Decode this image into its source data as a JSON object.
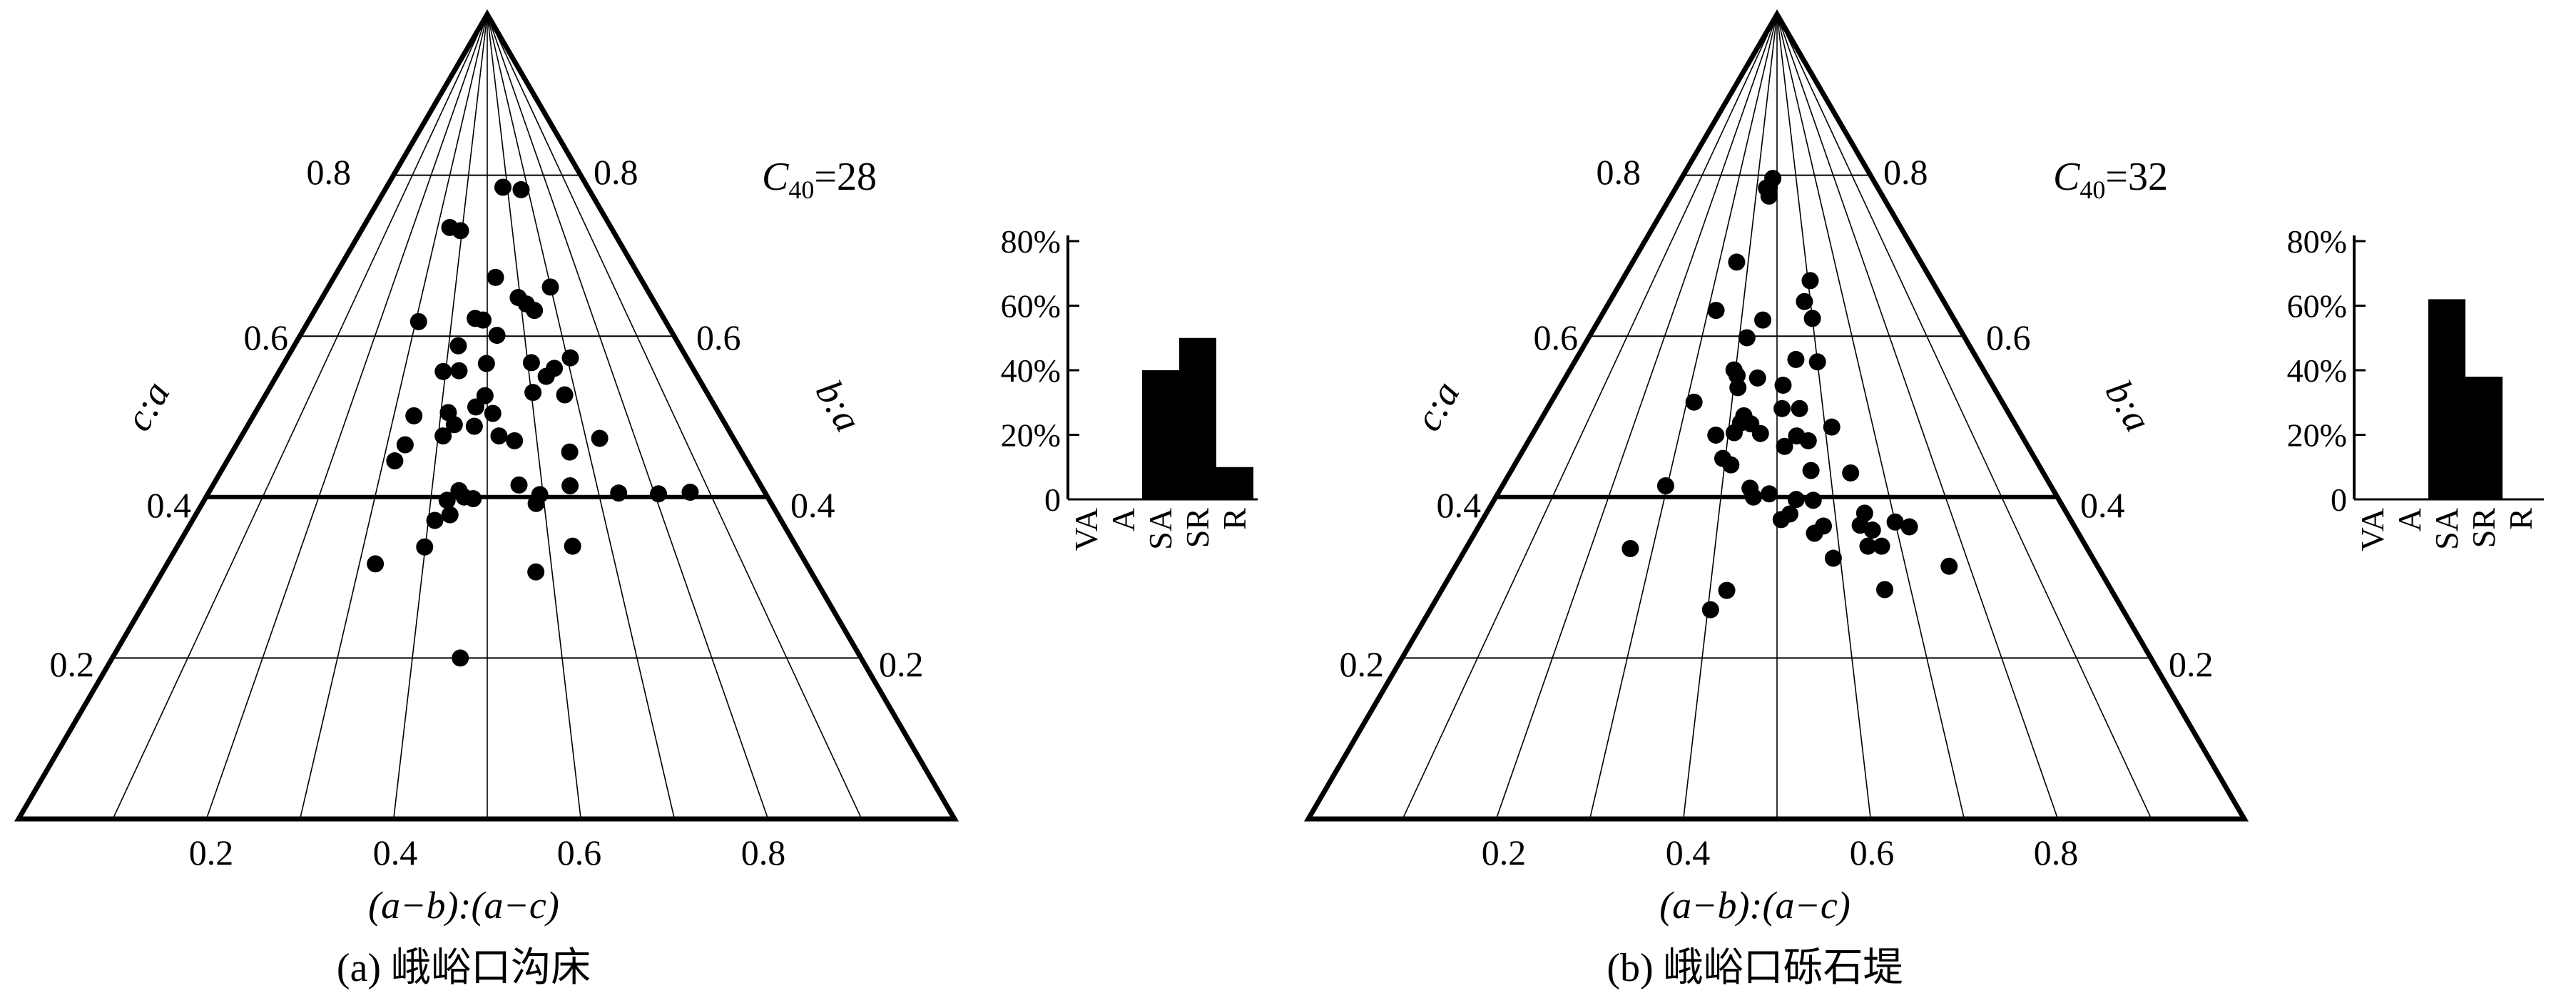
{
  "chart_data": [
    {
      "type": "scatter",
      "subtype": "ternary (Sneed-Folk form diagram)",
      "caption": "(a) 峨峪口沟床",
      "xlabel": "(a−b):(a−c)",
      "left_axis_label": "c:a",
      "right_axis_label": "b:a",
      "annotation": {
        "prefix": "C",
        "subscript": "40",
        "value": "=28"
      },
      "levels": [
        0.2,
        0.4,
        0.6,
        0.8
      ],
      "level_labels": [
        "0.2",
        "0.4",
        "0.6",
        "0.8"
      ],
      "bottom_ticks": [
        "0.2",
        "0.4",
        "0.6",
        "0.8"
      ],
      "grid": true,
      "points": [
        {
          "x": 0.464,
          "y": 0.2
        },
        {
          "x": 0.325,
          "y": 0.317
        },
        {
          "x": 0.399,
          "y": 0.338
        },
        {
          "x": 0.411,
          "y": 0.371
        },
        {
          "x": 0.436,
          "y": 0.378
        },
        {
          "x": 0.475,
          "y": 0.398
        },
        {
          "x": 0.429,
          "y": 0.396
        },
        {
          "x": 0.449,
          "y": 0.408
        },
        {
          "x": 0.459,
          "y": 0.4
        },
        {
          "x": 0.322,
          "y": 0.445
        },
        {
          "x": 0.336,
          "y": 0.465
        },
        {
          "x": 0.343,
          "y": 0.501
        },
        {
          "x": 0.41,
          "y": 0.476
        },
        {
          "x": 0.431,
          "y": 0.49
        },
        {
          "x": 0.416,
          "y": 0.505
        },
        {
          "x": 0.473,
          "y": 0.488
        },
        {
          "x": 0.475,
          "y": 0.512
        },
        {
          "x": 0.495,
          "y": 0.526
        },
        {
          "x": 0.394,
          "y": 0.556
        },
        {
          "x": 0.432,
          "y": 0.557
        },
        {
          "x": 0.425,
          "y": 0.588
        },
        {
          "x": 0.498,
          "y": 0.566
        },
        {
          "x": 0.488,
          "y": 0.62
        },
        {
          "x": 0.394,
          "y": 0.731
        },
        {
          "x": 0.349,
          "y": 0.735
        },
        {
          "x": 0.308,
          "y": 0.618
        },
        {
          "x": 0.526,
          "y": 0.601
        },
        {
          "x": 0.524,
          "y": 0.476
        },
        {
          "x": 0.555,
          "y": 0.47
        },
        {
          "x": 0.558,
          "y": 0.415
        },
        {
          "x": 0.594,
          "y": 0.403
        },
        {
          "x": 0.586,
          "y": 0.392
        },
        {
          "x": 0.575,
          "y": 0.307
        },
        {
          "x": 0.638,
          "y": 0.339
        },
        {
          "x": 0.651,
          "y": 0.414
        },
        {
          "x": 0.662,
          "y": 0.456
        },
        {
          "x": 0.675,
          "y": 0.527
        },
        {
          "x": 0.64,
          "y": 0.55
        },
        {
          "x": 0.604,
          "y": 0.53
        },
        {
          "x": 0.609,
          "y": 0.567
        },
        {
          "x": 0.616,
          "y": 0.64
        },
        {
          "x": 0.663,
          "y": 0.56
        },
        {
          "x": 0.708,
          "y": 0.573
        },
        {
          "x": 0.728,
          "y": 0.473
        },
        {
          "x": 0.736,
          "y": 0.405
        },
        {
          "x": 0.807,
          "y": 0.404
        },
        {
          "x": 0.865,
          "y": 0.406
        },
        {
          "x": 0.594,
          "y": 0.648
        },
        {
          "x": 0.637,
          "y": 0.632
        },
        {
          "x": 0.578,
          "y": 0.785
        },
        {
          "x": 0.666,
          "y": 0.782
        },
        {
          "x": 0.699,
          "y": 0.661
        },
        {
          "x": 0.527,
          "y": 0.673
        },
        {
          "x": 0.466,
          "y": 0.622
        },
        {
          "x": 0.512,
          "y": 0.504
        }
      ]
    },
    {
      "type": "bar",
      "categories": [
        "VA",
        "A",
        "SA",
        "SR",
        "R"
      ],
      "values": [
        0,
        0,
        40,
        50,
        10
      ],
      "ylim": [
        0,
        80
      ],
      "yticks": [
        "0",
        "20%",
        "40%",
        "60%",
        "80%"
      ]
    },
    {
      "type": "scatter",
      "subtype": "ternary (Sneed-Folk form diagram)",
      "caption": "(b) 峨峪口砾石堤",
      "xlabel": "(a−b):(a−c)",
      "left_axis_label": "c:a",
      "right_axis_label": "b:a",
      "annotation": {
        "prefix": "C",
        "subscript": "40",
        "value": "=32"
      },
      "levels": [
        0.2,
        0.4,
        0.6,
        0.8
      ],
      "level_labels": [
        "0.2",
        "0.4",
        "0.6",
        "0.8"
      ],
      "bottom_ticks": [
        "0.2",
        "0.4",
        "0.6",
        "0.8"
      ],
      "grid": true,
      "points": [
        {
          "x": 0.404,
          "y": 0.26
        },
        {
          "x": 0.425,
          "y": 0.284
        },
        {
          "x": 0.264,
          "y": 0.336
        },
        {
          "x": 0.297,
          "y": 0.414
        },
        {
          "x": 0.316,
          "y": 0.518
        },
        {
          "x": 0.323,
          "y": 0.632
        },
        {
          "x": 0.36,
          "y": 0.692
        },
        {
          "x": 0.395,
          "y": 0.448
        },
        {
          "x": 0.375,
          "y": 0.477
        },
        {
          "x": 0.396,
          "y": 0.558
        },
        {
          "x": 0.405,
          "y": 0.551
        },
        {
          "x": 0.41,
          "y": 0.536
        },
        {
          "x": 0.42,
          "y": 0.598
        },
        {
          "x": 0.412,
          "y": 0.48
        },
        {
          "x": 0.412,
          "y": 0.44
        },
        {
          "x": 0.423,
          "y": 0.492
        },
        {
          "x": 0.429,
          "y": 0.501
        },
        {
          "x": 0.445,
          "y": 0.491
        },
        {
          "x": 0.454,
          "y": 0.548
        },
        {
          "x": 0.46,
          "y": 0.62
        },
        {
          "x": 0.458,
          "y": 0.784
        },
        {
          "x": 0.448,
          "y": 0.784
        },
        {
          "x": 0.461,
          "y": 0.785
        },
        {
          "x": 0.478,
          "y": 0.796
        },
        {
          "x": 0.462,
          "y": 0.774
        },
        {
          "x": 0.458,
          "y": 0.4
        },
        {
          "x": 0.451,
          "y": 0.411
        },
        {
          "x": 0.466,
          "y": 0.479
        },
        {
          "x": 0.511,
          "y": 0.51
        },
        {
          "x": 0.515,
          "y": 0.463
        },
        {
          "x": 0.514,
          "y": 0.539
        },
        {
          "x": 0.54,
          "y": 0.476
        },
        {
          "x": 0.547,
          "y": 0.571
        },
        {
          "x": 0.549,
          "y": 0.51
        },
        {
          "x": 0.563,
          "y": 0.47
        },
        {
          "x": 0.582,
          "y": 0.643
        },
        {
          "x": 0.6,
          "y": 0.622
        },
        {
          "x": 0.6,
          "y": 0.568
        },
        {
          "x": 0.607,
          "y": 0.669
        },
        {
          "x": 0.614,
          "y": 0.487
        },
        {
          "x": 0.638,
          "y": 0.43
        },
        {
          "x": 0.564,
          "y": 0.396
        },
        {
          "x": 0.578,
          "y": 0.364
        },
        {
          "x": 0.562,
          "y": 0.355
        },
        {
          "x": 0.522,
          "y": 0.379
        },
        {
          "x": 0.534,
          "y": 0.397
        },
        {
          "x": 0.507,
          "y": 0.372
        },
        {
          "x": 0.486,
          "y": 0.404
        },
        {
          "x": 0.564,
          "y": 0.433
        },
        {
          "x": 0.64,
          "y": 0.365
        },
        {
          "x": 0.647,
          "y": 0.339
        },
        {
          "x": 0.651,
          "y": 0.38
        },
        {
          "x": 0.659,
          "y": 0.359
        },
        {
          "x": 0.661,
          "y": 0.285
        },
        {
          "x": 0.589,
          "y": 0.324
        },
        {
          "x": 0.669,
          "y": 0.339
        },
        {
          "x": 0.7,
          "y": 0.369
        },
        {
          "x": 0.722,
          "y": 0.363
        },
        {
          "x": 0.768,
          "y": 0.314
        }
      ]
    },
    {
      "type": "bar",
      "categories": [
        "VA",
        "A",
        "SA",
        "SR",
        "R"
      ],
      "values": [
        0,
        0,
        62,
        38,
        0
      ],
      "ylim": [
        0,
        80
      ],
      "yticks": [
        "0",
        "20%",
        "40%",
        "60%",
        "80%"
      ]
    }
  ]
}
